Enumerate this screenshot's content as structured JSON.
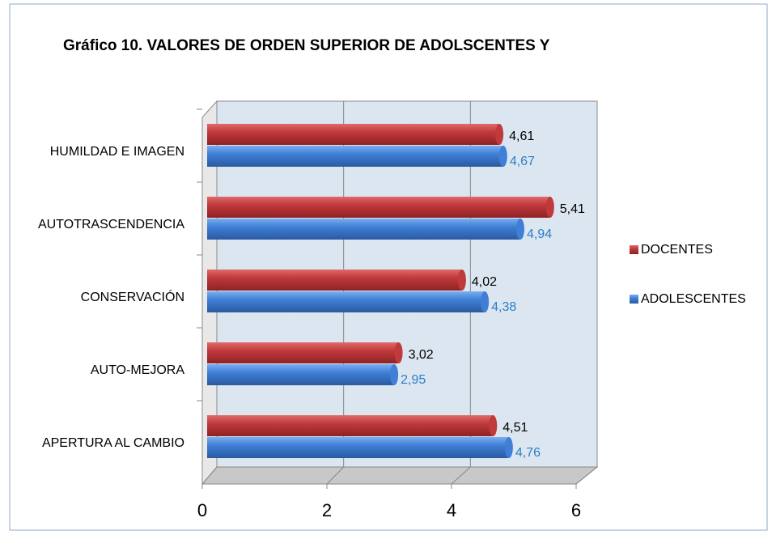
{
  "chart_data": {
    "type": "bar",
    "orientation": "horizontal",
    "title": "Gráfico 10. VALORES DE ORDEN SUPERIOR DE ADOLSCENTES Y",
    "categories": [
      "HUMILDAD E IMAGEN",
      "AUTOTRASCENDENCIA",
      "CONSERVACIÓN",
      "AUTO-MEJORA",
      "APERTURA AL CAMBIO"
    ],
    "series": [
      {
        "name": "DOCENTES",
        "color": "#c0393b",
        "values": [
          4.61,
          5.41,
          4.02,
          3.02,
          4.51
        ],
        "value_labels": [
          "4,61",
          "5,41",
          "4,02",
          "3,02",
          "4,51"
        ]
      },
      {
        "name": "ADOLESCENTES",
        "color": "#3f7fd6",
        "values": [
          4.67,
          4.94,
          4.38,
          2.95,
          4.76
        ],
        "value_labels": [
          "4,67",
          "4,94",
          "4,38",
          "2,95",
          "4,76"
        ]
      }
    ],
    "xlim": [
      0,
      6
    ],
    "xticks": [
      0,
      2,
      4,
      6
    ],
    "grid": true,
    "legend": "right"
  }
}
